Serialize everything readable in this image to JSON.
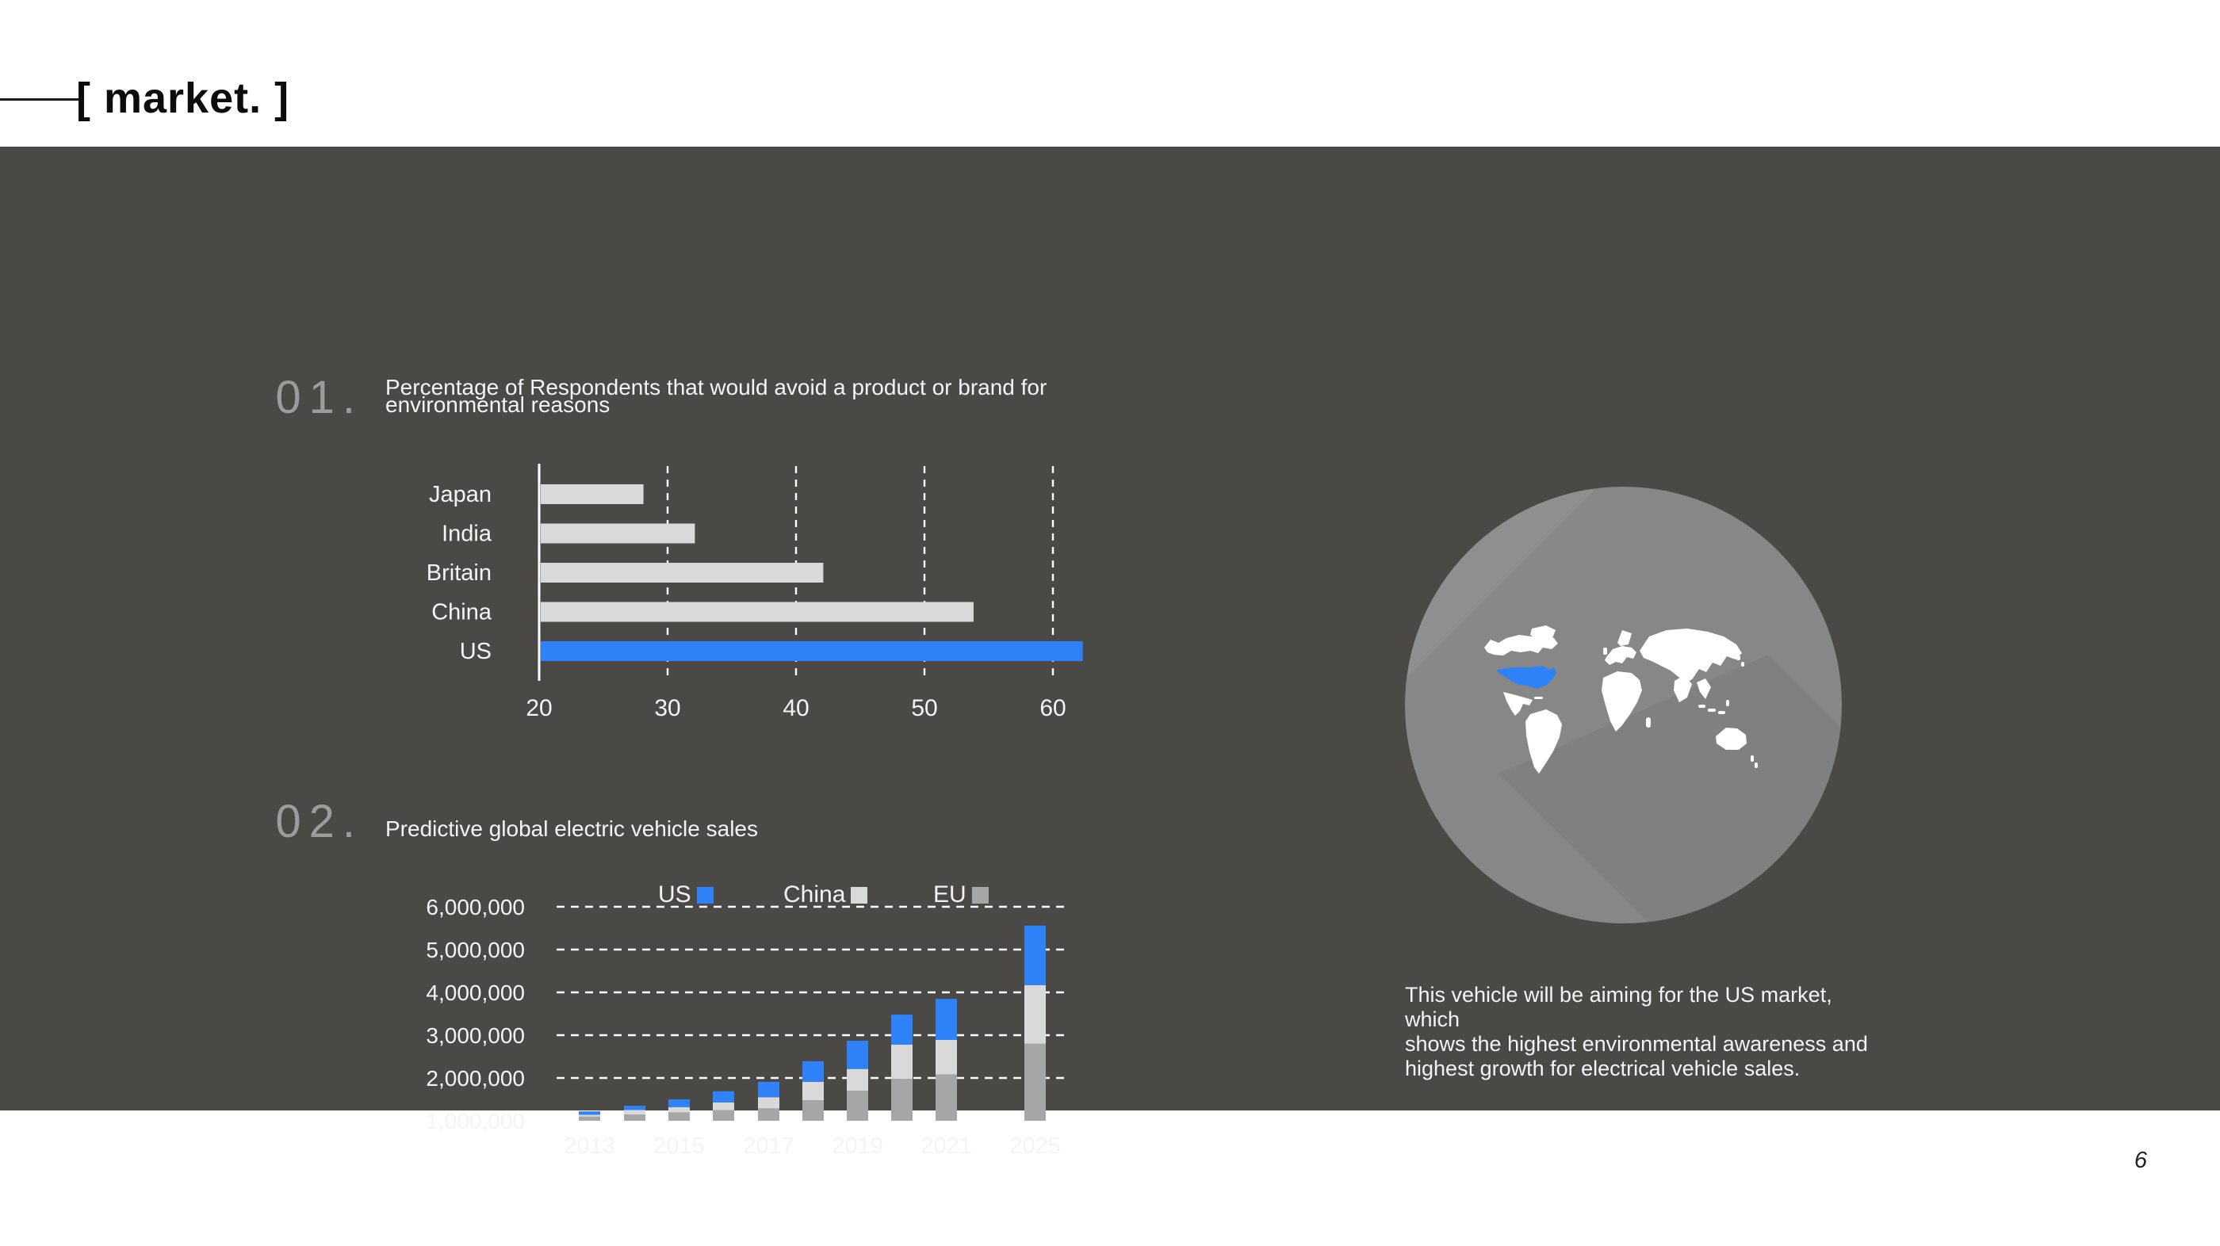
{
  "header": {
    "title": "[ market. ]"
  },
  "page_number": "6",
  "sections": [
    {
      "number": "01.",
      "title_lines": [
        "Percentage of Respondents that would avoid a product or brand for",
        "environmental reasons"
      ]
    },
    {
      "number": "02.",
      "title_lines": [
        "Predictive global electric vehicle sales"
      ]
    }
  ],
  "annotation": {
    "lines": [
      "This vehicle will be aiming for the US market, which",
      "shows the highest environmental awareness and",
      "highest growth for electrical vehicle sales."
    ]
  },
  "colors": {
    "background_dark": "#4a4946",
    "accent_blue": "#2f82f7",
    "bar_light_gray": "#d9d9d9",
    "bar_mid_gray": "#a6a6a6",
    "section_number_gray": "#9c9c9c",
    "globe_gray": "#8f8f8f",
    "text_white": "#f4f4f4"
  },
  "chart_data": [
    {
      "type": "bar",
      "orientation": "horizontal",
      "title": "Percentage of Respondents that would avoid a product or brand for environmental reasons",
      "categories": [
        "Japan",
        "India",
        "Britain",
        "China",
        "US"
      ],
      "values": [
        28,
        32,
        42,
        53.7,
        62.2
      ],
      "highlight_category": "US",
      "bar_color": "#d9d9d9",
      "highlight_color": "#2f82f7",
      "x_ticks": [
        20,
        30,
        40,
        50,
        60
      ],
      "xlim": [
        20,
        62.5
      ],
      "grid": "dashed-vertical",
      "unit": "percent"
    },
    {
      "type": "bar",
      "subtype": "stacked",
      "title": "Predictive global electric vehicle sales",
      "categories": [
        2013,
        2014,
        2015,
        2016,
        2017,
        2018,
        2019,
        2020,
        2021,
        2025
      ],
      "x_tick_labels": [
        "2013",
        "2015",
        "2017",
        "2019",
        "2021",
        "2025"
      ],
      "series": [
        {
          "name": "EU",
          "color": "#a6a6a6",
          "values_millions": [
            0.1,
            0.15,
            0.2,
            0.25,
            0.29,
            0.48,
            0.7,
            0.98,
            1.08,
            1.8
          ]
        },
        {
          "name": "China",
          "color": "#d9d9d9",
          "values_millions": [
            0.04,
            0.1,
            0.12,
            0.18,
            0.26,
            0.43,
            0.51,
            0.8,
            0.81,
            1.37
          ]
        },
        {
          "name": "US",
          "color": "#2f82f7",
          "values_millions": [
            0.08,
            0.1,
            0.18,
            0.26,
            0.36,
            0.48,
            0.66,
            0.7,
            0.96,
            1.39
          ]
        }
      ],
      "legend": [
        {
          "label": "US",
          "color": "#2f82f7"
        },
        {
          "label": "China",
          "color": "#d9d9d9"
        },
        {
          "label": "EU",
          "color": "#a6a6a6"
        }
      ],
      "legend_position": "top",
      "y_tick_labels": [
        "1,000,000",
        "2,000,000",
        "3,000,000",
        "4,000,000",
        "5,000,000",
        "6,000,000"
      ],
      "ylim": [
        1000000,
        6000000
      ],
      "grid": "dashed-horizontal",
      "note": "segment heights read against axis where baseline = 1,000,000 and each gridline = +1,000,000",
      "unit": "vehicles"
    }
  ]
}
